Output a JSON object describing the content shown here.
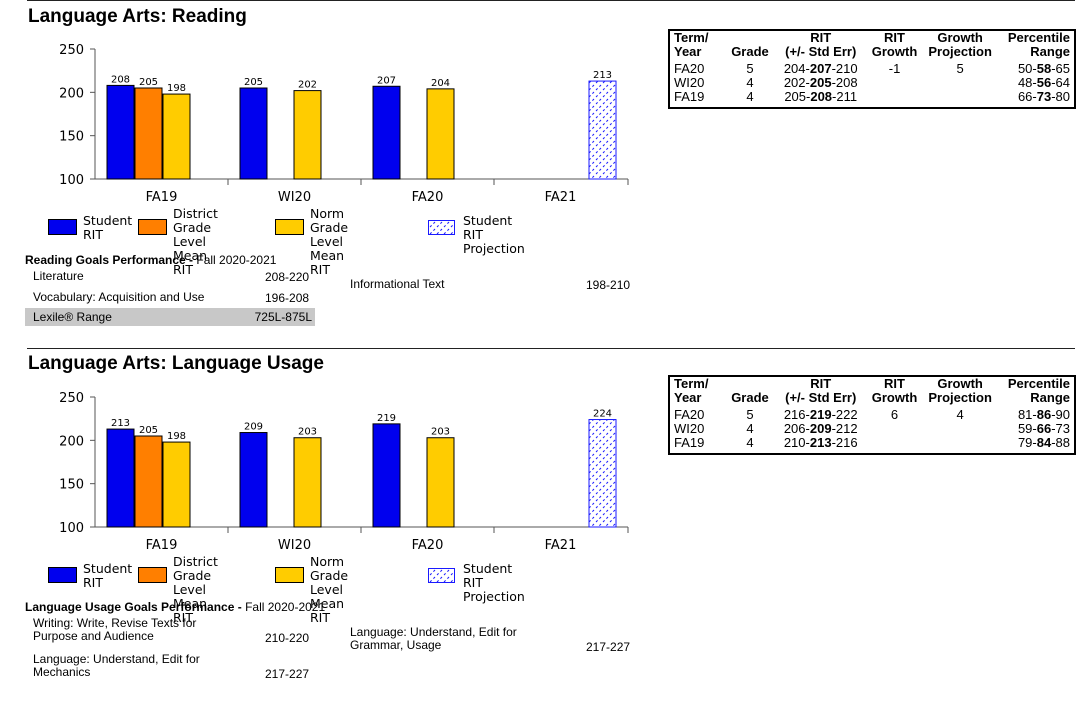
{
  "legend": {
    "student": [
      "Student",
      "RIT"
    ],
    "district": [
      "District Grade",
      "Level Mean",
      "RIT"
    ],
    "norm": [
      "Norm Grade",
      "Level Mean",
      "RIT"
    ],
    "projection": [
      "Student RIT",
      "Projection"
    ]
  },
  "colors": {
    "student": "#0000ee",
    "district": "#ff7f00",
    "norm": "#ffcc00",
    "projection": "#1a1aff"
  },
  "table_headers": {
    "term": [
      "Term/",
      "Year"
    ],
    "grade": "Grade",
    "rit": [
      "RIT",
      "(+/- Std Err)"
    ],
    "growth": [
      "RIT",
      "Growth"
    ],
    "projection": [
      "Growth",
      "Projection"
    ],
    "percentile": [
      "Percentile",
      "Range"
    ]
  },
  "reading": {
    "title": "Language Arts: Reading",
    "chart_data": {
      "type": "bar",
      "categories": [
        "FA19",
        "WI20",
        "FA20",
        "FA21"
      ],
      "ylim": [
        100,
        250
      ],
      "yticks": [
        100,
        150,
        200,
        250
      ],
      "series": [
        {
          "name": "Student RIT",
          "values": [
            208,
            205,
            207,
            null
          ]
        },
        {
          "name": "District Grade Level Mean RIT",
          "values": [
            205,
            null,
            null,
            null
          ]
        },
        {
          "name": "Norm Grade Level Mean RIT",
          "values": [
            198,
            202,
            204,
            null
          ]
        },
        {
          "name": "Student RIT Projection",
          "values": [
            null,
            null,
            null,
            213
          ]
        }
      ],
      "labels": [
        [
          "208",
          "205",
          "198"
        ],
        [
          "205",
          "",
          "202"
        ],
        [
          "207",
          "",
          "204"
        ],
        [
          "213",
          "",
          ""
        ]
      ]
    },
    "goals": {
      "head_bold": "Reading Goals Performance - ",
      "head_rest": "Fall 2020-2021",
      "items": [
        {
          "name": "Literature",
          "range": "208-220"
        },
        {
          "name": "Vocabulary: Acquisition and Use",
          "range": "196-208"
        },
        {
          "name": "Informational Text",
          "range": "198-210"
        }
      ],
      "lexile_label": "Lexile® Range",
      "lexile_value": "725L-875L"
    },
    "table": [
      {
        "term": "FA20",
        "grade": "5",
        "rit_lo": "204-",
        "rit": "207",
        "rit_hi": "-210",
        "growth": "-1",
        "projection": "5",
        "pct_lo": "50-",
        "pct": "58",
        "pct_hi": "-65"
      },
      {
        "term": "WI20",
        "grade": "4",
        "rit_lo": "202-",
        "rit": "205",
        "rit_hi": "-208",
        "growth": "",
        "projection": "",
        "pct_lo": "48-",
        "pct": "56",
        "pct_hi": "-64"
      },
      {
        "term": "FA19",
        "grade": "4",
        "rit_lo": "205-",
        "rit": "208",
        "rit_hi": "-211",
        "growth": "",
        "projection": "",
        "pct_lo": "66-",
        "pct": "73",
        "pct_hi": "-80"
      }
    ]
  },
  "usage": {
    "title": "Language Arts: Language Usage",
    "chart_data": {
      "type": "bar",
      "categories": [
        "FA19",
        "WI20",
        "FA20",
        "FA21"
      ],
      "ylim": [
        100,
        250
      ],
      "yticks": [
        100,
        150,
        200,
        250
      ],
      "series": [
        {
          "name": "Student RIT",
          "values": [
            213,
            209,
            219,
            null
          ]
        },
        {
          "name": "District Grade Level Mean RIT",
          "values": [
            205,
            null,
            null,
            null
          ]
        },
        {
          "name": "Norm Grade Level Mean RIT",
          "values": [
            198,
            203,
            203,
            null
          ]
        },
        {
          "name": "Student RIT Projection",
          "values": [
            null,
            null,
            null,
            224
          ]
        }
      ],
      "labels": [
        [
          "213",
          "205",
          "198"
        ],
        [
          "209",
          "",
          "203"
        ],
        [
          "219",
          "",
          "203"
        ],
        [
          "224",
          "",
          ""
        ]
      ]
    },
    "goals": {
      "head_bold": "Language Usage Goals Performance - ",
      "head_rest": "Fall 2020-2021",
      "items": [
        {
          "name1": "Writing: Write, Revise Texts for",
          "name2": "Purpose and Audience",
          "range": "210-220"
        },
        {
          "name1": "Language: Understand, Edit for",
          "name2": "Mechanics",
          "range": "217-227"
        },
        {
          "name1": "Language: Understand, Edit for",
          "name2": "Grammar, Usage",
          "range": "217-227"
        }
      ]
    },
    "table": [
      {
        "term": "FA20",
        "grade": "5",
        "rit_lo": "216-",
        "rit": "219",
        "rit_hi": "-222",
        "growth": "6",
        "projection": "4",
        "pct_lo": "81-",
        "pct": "86",
        "pct_hi": "-90"
      },
      {
        "term": "WI20",
        "grade": "4",
        "rit_lo": "206-",
        "rit": "209",
        "rit_hi": "-212",
        "growth": "",
        "projection": "",
        "pct_lo": "59-",
        "pct": "66",
        "pct_hi": "-73"
      },
      {
        "term": "FA19",
        "grade": "4",
        "rit_lo": "210-",
        "rit": "213",
        "rit_hi": "-216",
        "growth": "",
        "projection": "",
        "pct_lo": "79-",
        "pct": "84",
        "pct_hi": "-88"
      }
    ]
  }
}
